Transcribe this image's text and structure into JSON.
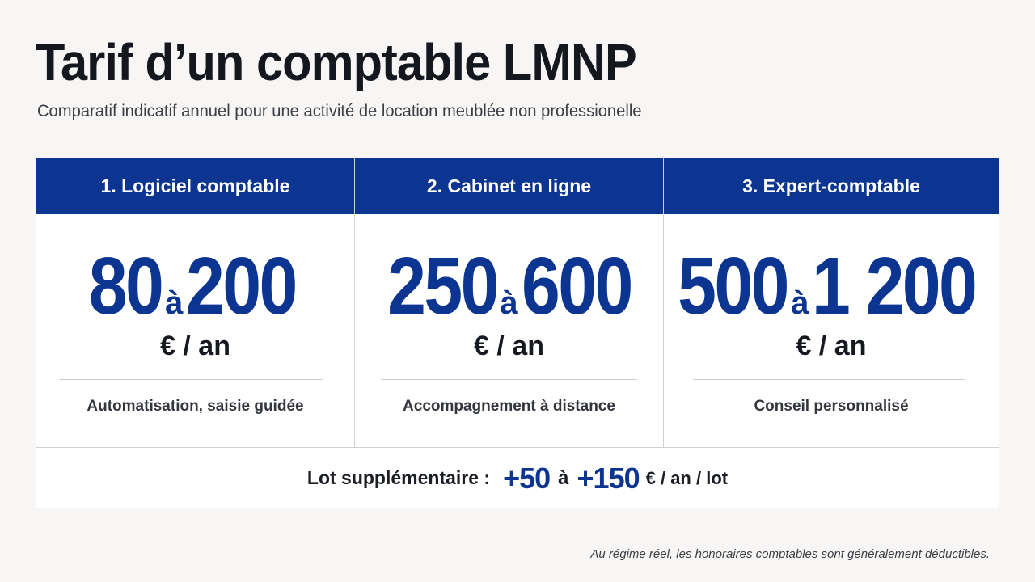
{
  "title": "Tarif d’un comptable LMNP",
  "subtitle": "Comparatif indicatif annuel pour une activité de location meublée non professionelle",
  "columns": [
    {
      "header": "1. Logiciel comptable",
      "min": "80",
      "sep": "à",
      "max": "200",
      "unit": "€ / an",
      "description": "Automatisation, saisie guidée"
    },
    {
      "header": "2. Cabinet en ligne",
      "min": "250",
      "sep": "à",
      "max": "600",
      "unit": "€ / an",
      "description": "Accompagnement à distance"
    },
    {
      "header": "3. Expert-comptable",
      "min": "500",
      "sep": "à",
      "max": "1 200",
      "unit": "€ / an",
      "description": "Conseil personnalisé"
    }
  ],
  "extra_lot": {
    "label": "Lot supplémentaire :",
    "min": "+50",
    "sep": "à",
    "max": "+150",
    "unit": "€ / an / lot"
  },
  "footnote": "Au régime réel, les honoraires comptables sont généralement déductibles.",
  "colors": {
    "accent": "#0c3591",
    "background": "#f7f6f5",
    "text": "#1b1e24"
  }
}
